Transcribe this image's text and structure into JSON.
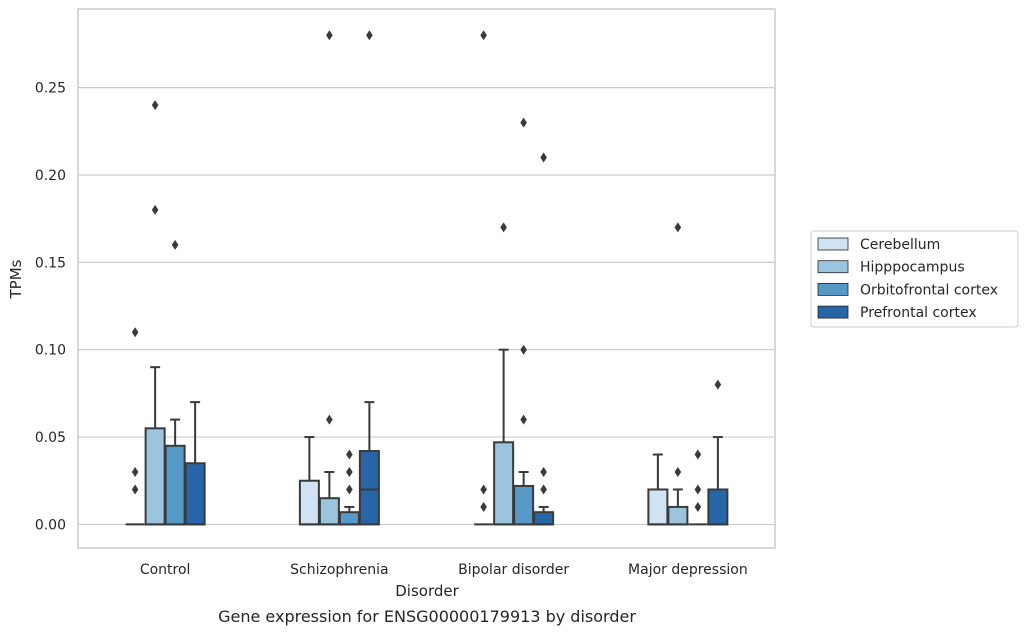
{
  "chart_data": {
    "type": "box",
    "caption": "Gene expression for ENSG00000179913 by disorder",
    "xlabel": "Disorder",
    "ylabel": "TPMs",
    "ylim": [
      -0.0135,
      0.295
    ],
    "yticks": [
      0.0,
      0.05,
      0.1,
      0.15,
      0.2,
      0.25
    ],
    "ytick_labels": [
      "0.00",
      "0.05",
      "0.10",
      "0.15",
      "0.20",
      "0.25"
    ],
    "grid": "horizontal",
    "legend_position": "right",
    "categories": [
      "Control",
      "Schizophrenia",
      "Bipolar disorder",
      "Major depression"
    ],
    "series": [
      {
        "name": "Cerebellum",
        "color": "#d1e2f2",
        "boxes": [
          {
            "q1": 0.0,
            "median": 0.0,
            "q3": 0.0,
            "whisker_low": 0.0,
            "whisker_high": 0.0,
            "outliers": [
              0.02,
              0.03,
              0.11
            ]
          },
          {
            "q1": 0.0,
            "median": 0.0,
            "q3": 0.025,
            "whisker_low": 0.0,
            "whisker_high": 0.05,
            "outliers": []
          },
          {
            "q1": 0.0,
            "median": 0.0,
            "q3": 0.0,
            "whisker_low": 0.0,
            "whisker_high": 0.0,
            "outliers": [
              0.01,
              0.02,
              0.28
            ]
          },
          {
            "q1": 0.0,
            "median": 0.0,
            "q3": 0.02,
            "whisker_low": 0.0,
            "whisker_high": 0.04,
            "outliers": []
          }
        ]
      },
      {
        "name": "Hipppocampus",
        "color": "#9bc5df",
        "boxes": [
          {
            "q1": 0.0,
            "median": 0.0,
            "q3": 0.055,
            "whisker_low": 0.0,
            "whisker_high": 0.09,
            "outliers": [
              0.18,
              0.24
            ]
          },
          {
            "q1": 0.0,
            "median": 0.0,
            "q3": 0.015,
            "whisker_low": 0.0,
            "whisker_high": 0.03,
            "outliers": [
              0.06,
              0.28
            ]
          },
          {
            "q1": 0.0,
            "median": 0.0,
            "q3": 0.047,
            "whisker_low": 0.0,
            "whisker_high": 0.1,
            "outliers": [
              0.17
            ]
          },
          {
            "q1": 0.0,
            "median": 0.0,
            "q3": 0.01,
            "whisker_low": 0.0,
            "whisker_high": 0.02,
            "outliers": [
              0.03,
              0.17
            ]
          }
        ]
      },
      {
        "name": "Orbitofrontal cortex",
        "color": "#5699c6",
        "boxes": [
          {
            "q1": 0.0,
            "median": 0.0,
            "q3": 0.045,
            "whisker_low": 0.0,
            "whisker_high": 0.06,
            "outliers": [
              0.16
            ]
          },
          {
            "q1": 0.0,
            "median": 0.0,
            "q3": 0.007,
            "whisker_low": 0.0,
            "whisker_high": 0.01,
            "outliers": [
              0.02,
              0.03,
              0.04
            ]
          },
          {
            "q1": 0.0,
            "median": 0.0,
            "q3": 0.022,
            "whisker_low": 0.0,
            "whisker_high": 0.03,
            "outliers": [
              0.06,
              0.1,
              0.23
            ]
          },
          {
            "q1": 0.0,
            "median": 0.0,
            "q3": 0.0,
            "whisker_low": 0.0,
            "whisker_high": 0.0,
            "outliers": [
              0.01,
              0.02,
              0.04
            ]
          }
        ]
      },
      {
        "name": "Prefrontal cortex",
        "color": "#2666a8",
        "boxes": [
          {
            "q1": 0.0,
            "median": 0.0,
            "q3": 0.035,
            "whisker_low": 0.0,
            "whisker_high": 0.07,
            "outliers": []
          },
          {
            "q1": 0.0,
            "median": 0.02,
            "q3": 0.042,
            "whisker_low": 0.0,
            "whisker_high": 0.07,
            "outliers": [
              0.28
            ]
          },
          {
            "q1": 0.0,
            "median": 0.0,
            "q3": 0.007,
            "whisker_low": 0.0,
            "whisker_high": 0.01,
            "outliers": [
              0.02,
              0.03,
              0.21
            ]
          },
          {
            "q1": 0.0,
            "median": 0.0,
            "q3": 0.02,
            "whisker_low": 0.0,
            "whisker_high": 0.05,
            "outliers": [
              0.08
            ]
          }
        ]
      }
    ]
  }
}
